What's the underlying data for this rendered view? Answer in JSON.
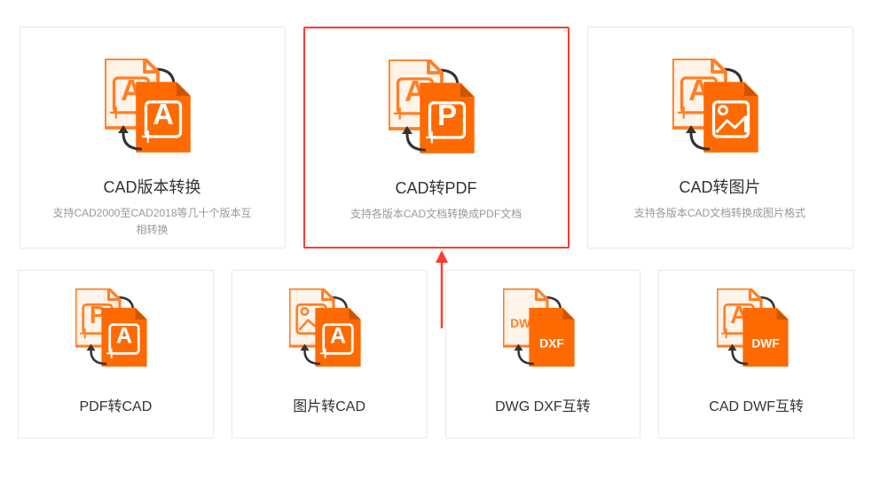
{
  "colors": {
    "orange_outline": "#ff7f27",
    "orange_fill": "#ff6a00",
    "light_fill": "#fff4ea",
    "highlight_border": "#ff3b2f",
    "card_border": "#e8e8e8",
    "title_color": "#333333",
    "desc_color": "#999999",
    "white": "#ffffff"
  },
  "cards": {
    "row1": [
      {
        "id": "cad-version",
        "title": "CAD版本转换",
        "desc": "支持CAD2000至CAD2018等几十个版本互相转换",
        "icon_back_letter": "A",
        "icon_front_letter": "A",
        "icon_front_type": "solid-letter",
        "highlight": false
      },
      {
        "id": "cad-to-pdf",
        "title": "CAD转PDF",
        "desc": "支持各版本CAD文档转换成PDF文档",
        "icon_back_letter": "A",
        "icon_front_letter": "P",
        "icon_front_type": "solid-letter",
        "highlight": true
      },
      {
        "id": "cad-to-image",
        "title": "CAD转图片",
        "desc": "支持各版本CAD文档转换成图片格式",
        "icon_back_letter": "A",
        "icon_front_letter": "",
        "icon_front_type": "solid-image",
        "highlight": false
      }
    ],
    "row2": [
      {
        "id": "pdf-to-cad",
        "title": "PDF转CAD",
        "icon_back_letter": "P",
        "icon_front_letter": "A",
        "icon_front_type": "solid-cad"
      },
      {
        "id": "image-to-cad",
        "title": "图片转CAD",
        "icon_back_type": "outline-image",
        "icon_front_letter": "A",
        "icon_front_type": "solid-cad"
      },
      {
        "id": "dwg-dxf",
        "title": "DWG DXF互转",
        "icon_back_letter": "DWG",
        "icon_back_type": "outline-small-label",
        "icon_front_letter": "DXF",
        "icon_front_type": "solid-small-label"
      },
      {
        "id": "cad-dwf",
        "title": "CAD DWF互转",
        "icon_back_letter": "A",
        "icon_front_letter": "DWF",
        "icon_front_type": "solid-small-label"
      }
    ]
  },
  "arrow_indicator": {
    "present": true,
    "color": "#ff3b2f"
  }
}
